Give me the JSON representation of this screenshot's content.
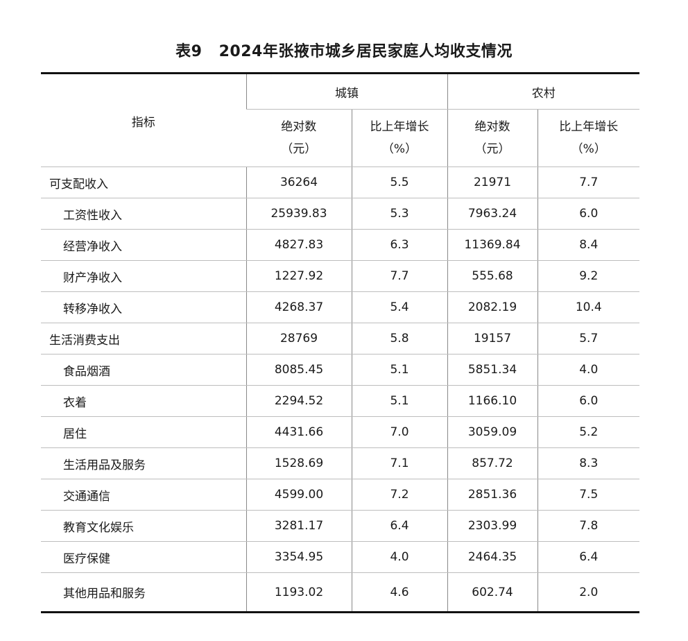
{
  "title": {
    "number": "表9",
    "text": "2024年张掖市城乡居民家庭人均收支情况"
  },
  "header": {
    "indicator": "指标",
    "groups": [
      "城镇",
      "农村"
    ],
    "sub": [
      {
        "line1": "绝对数",
        "line2": "（元）"
      },
      {
        "line1": "比上年增长",
        "line2": "（%）"
      },
      {
        "line1": "绝对数",
        "line2": "（元）"
      },
      {
        "line1": "比上年增长",
        "line2": "（%）"
      }
    ]
  },
  "rows": [
    {
      "label": "可支配收入",
      "level": 0,
      "values": [
        "36264",
        "5.5",
        "21971",
        "7.7"
      ]
    },
    {
      "label": "工资性收入",
      "level": 1,
      "values": [
        "25939.83",
        "5.3",
        "7963.24",
        "6.0"
      ]
    },
    {
      "label": "经营净收入",
      "level": 1,
      "values": [
        "4827.83",
        "6.3",
        "11369.84",
        "8.4"
      ]
    },
    {
      "label": "财产净收入",
      "level": 1,
      "values": [
        "1227.92",
        "7.7",
        "555.68",
        "9.2"
      ]
    },
    {
      "label": "转移净收入",
      "level": 1,
      "values": [
        "4268.37",
        "5.4",
        "2082.19",
        "10.4"
      ]
    },
    {
      "label": "生活消费支出",
      "level": 0,
      "values": [
        "28769",
        "5.8",
        "19157",
        "5.7"
      ]
    },
    {
      "label": "食品烟酒",
      "level": 1,
      "values": [
        "8085.45",
        "5.1",
        "5851.34",
        "4.0"
      ]
    },
    {
      "label": "衣着",
      "level": 1,
      "values": [
        "2294.52",
        "5.1",
        "1166.10",
        "6.0"
      ]
    },
    {
      "label": "居住",
      "level": 1,
      "values": [
        "4431.66",
        "7.0",
        "3059.09",
        "5.2"
      ]
    },
    {
      "label": "生活用品及服务",
      "level": 1,
      "values": [
        "1528.69",
        "7.1",
        "857.72",
        "8.3"
      ]
    },
    {
      "label": "交通通信",
      "level": 1,
      "values": [
        "4599.00",
        "7.2",
        "2851.36",
        "7.5"
      ]
    },
    {
      "label": "教育文化娱乐",
      "level": 1,
      "values": [
        "3281.17",
        "6.4",
        "2303.99",
        "7.8"
      ]
    },
    {
      "label": "医疗保健",
      "level": 1,
      "values": [
        "3354.95",
        "4.0",
        "2464.35",
        "6.4"
      ]
    },
    {
      "label": "其他用品和服务",
      "level": 1,
      "values": [
        "1193.02",
        "4.6",
        "602.74",
        "2.0"
      ]
    }
  ]
}
